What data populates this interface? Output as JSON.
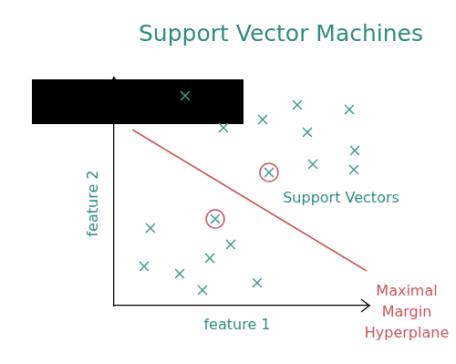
{
  "chart_data": {
    "type": "scatter",
    "title": "Support Vector Machines",
    "x_label": "feature 1",
    "y_label": "feature 2",
    "xlim": [
      0,
      28
    ],
    "ylim": [
      0,
      25
    ],
    "grid": false,
    "tick_labels": false,
    "annotations": [
      "Support Vectors",
      "Maximal Margin Hyperplane"
    ],
    "series": [
      {
        "type": "scatter",
        "marker": "x",
        "color": "#3d9a8b",
        "x": [
          7.8,
          12,
          16.3,
          20.1,
          25.8,
          21.2,
          26.4,
          21.8,
          26.3,
          17,
          11.1,
          4,
          12.8,
          10.5,
          3.3,
          7.2,
          9.7,
          15.7
        ],
        "values": [
          23,
          19.5,
          20.4,
          22,
          21.5,
          19,
          17,
          15.5,
          14.9,
          14.6,
          9.5,
          8.5,
          6.7,
          5.2,
          4.3,
          3.5,
          1.7,
          2.5
        ]
      },
      {
        "type": "scatter",
        "marker": "circle",
        "color": "#c9555b",
        "x": [
          17,
          11.1
        ],
        "values": [
          14.6,
          9.5
        ]
      },
      {
        "type": "line",
        "line_style": "solid",
        "color": "#c9555b",
        "x": [
          2,
          27.7
        ],
        "values": [
          19.3,
          3.8
        ]
      }
    ]
  }
}
